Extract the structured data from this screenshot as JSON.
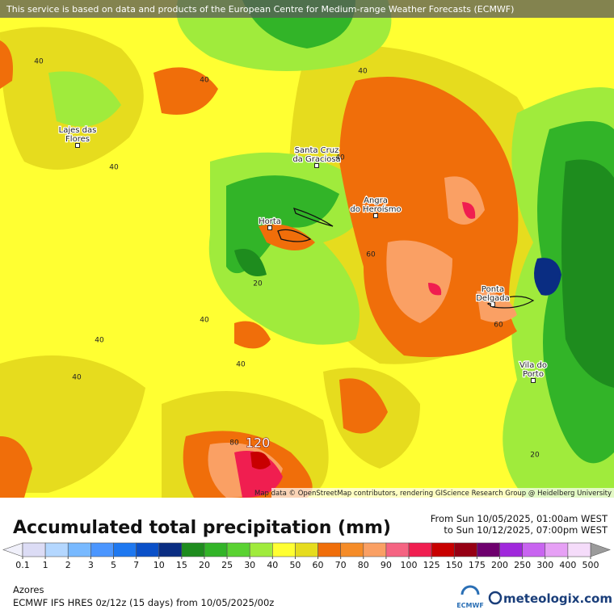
{
  "banner": "This service is based on data and products of the European Centre for Medium-range Weather Forecasts (ECMWF)",
  "attribution": "Map data © OpenStreetMap contributors, rendering GIScience Research Group @ Heidelberg University",
  "places": [
    {
      "lines": [
        "Lajes das",
        "Flores"
      ]
    },
    {
      "lines": [
        "Santa Cruz",
        "da Graciosa"
      ]
    },
    {
      "lines": [
        "Horta"
      ]
    },
    {
      "lines": [
        "Angra",
        "do Heroísmo"
      ]
    },
    {
      "lines": [
        "Ponta",
        "Delgada"
      ]
    },
    {
      "lines": [
        "Vila do",
        "Porto"
      ]
    }
  ],
  "contour_labels": [
    40,
    40,
    40,
    40,
    40,
    60,
    20,
    40,
    40,
    40,
    60,
    40,
    80,
    120,
    20
  ],
  "title": "Accumulated total precipitation (mm)",
  "period": [
    "From Sun 10/05/2025, 01:00am WEST",
    "to Sun 10/12/2025, 07:00pm WEST"
  ],
  "scale": {
    "ticks": [
      0.1,
      1,
      2,
      3,
      5,
      7,
      10,
      15,
      20,
      25,
      30,
      40,
      50,
      60,
      70,
      80,
      90,
      100,
      125,
      150,
      175,
      200,
      250,
      300,
      400,
      500
    ],
    "colors": [
      "#dcdcf5",
      "#b4d7ff",
      "#78b9ff",
      "#4b96ff",
      "#1e78f0",
      "#0a50c8",
      "#0a2d82",
      "#1e8c1e",
      "#32b428",
      "#5ad232",
      "#a0eb3c",
      "#ffff32",
      "#e6dc1e",
      "#f06e0a",
      "#f58c28",
      "#faa064",
      "#f56482",
      "#f01e50",
      "#c80000",
      "#960014",
      "#6e006e",
      "#a028dc",
      "#c864f0",
      "#e6a0f5",
      "#f5dcfa"
    ],
    "low_color": "#f0f0fa",
    "high_color": "#9b9b9b"
  },
  "region": "Azores",
  "model": "ECMWF IFS HRES 0z/12z (15 days) from  10/05/2025/00z",
  "logos": [
    "ECMWF",
    "meteologix.com"
  ]
}
